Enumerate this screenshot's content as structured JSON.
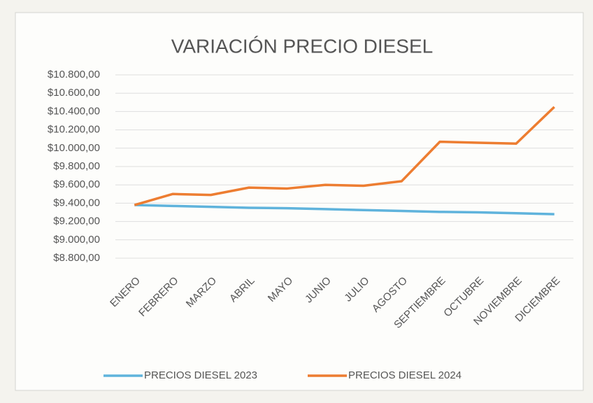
{
  "chart_data": {
    "type": "line",
    "title": "VARIACIÓN PRECIO DIESEL",
    "categories": [
      "ENERO",
      "FEBRERO",
      "MARZO",
      "ABRIL",
      "MAYO",
      "JUNIO",
      "JULIO",
      "AGOSTO",
      "SEPTIEMBRE",
      "OCTUBRE",
      "NOVIEMBRE",
      "DICIEMBRE"
    ],
    "series": [
      {
        "name": "PRECIOS DIESEL 2023",
        "color": "#5fb3dc",
        "values": [
          9380,
          9370,
          9360,
          9350,
          9345,
          9335,
          9325,
          9315,
          9305,
          9300,
          9290,
          9280
        ]
      },
      {
        "name": "PRECIOS DIESEL 2024",
        "color": "#ed7d31",
        "values": [
          9380,
          9500,
          9490,
          9570,
          9560,
          9600,
          9590,
          9640,
          10070,
          10060,
          10050,
          10450
        ]
      }
    ],
    "ylim": [
      8800,
      10800
    ],
    "yticks": [
      {
        "value": 8800,
        "label": "$8.800,00"
      },
      {
        "value": 9000,
        "label": "$9.000,00"
      },
      {
        "value": 9200,
        "label": "$9.200,00"
      },
      {
        "value": 9400,
        "label": "$9.400,00"
      },
      {
        "value": 9600,
        "label": "$9.600,00"
      },
      {
        "value": 9800,
        "label": "$9.800,00"
      },
      {
        "value": 10000,
        "label": "$10.000,00"
      },
      {
        "value": 10200,
        "label": "$10.200,00"
      },
      {
        "value": 10400,
        "label": "$10.400,00"
      },
      {
        "value": 10600,
        "label": "$10.600,00"
      },
      {
        "value": 10800,
        "label": "$10.800,00"
      }
    ],
    "grid": true
  }
}
